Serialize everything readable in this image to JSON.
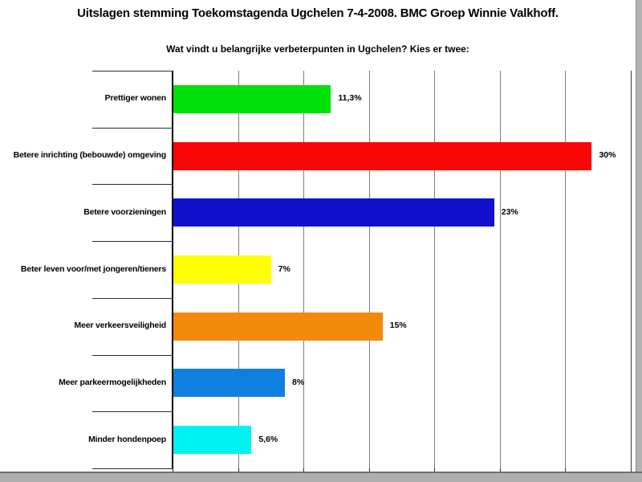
{
  "page_title": "Uitslagen stemming Toekomstagenda Ugchelen 7-4-2008. BMC Groep Winnie Valkhoff.",
  "chart_data": {
    "type": "bar",
    "orientation": "horizontal",
    "title": "Uitslagen stemming Toekomstagenda Ugchelen 7-4-2008. BMC Groep Winnie Valkhoff.",
    "subtitle": "Wat vindt u belangrijke verbeterpunten in Ugchelen? Kies er twee:",
    "categories": [
      "Prettiger wonen",
      "Betere inrichting (bebouwde) omgeving",
      "Betere voorzieningen",
      "Beter leven voor/met jongeren/tieners",
      "Meer verkeersveiligheid",
      "Meer parkeermogelijkheden",
      "Minder hondenpoep"
    ],
    "values": [
      11.3,
      30,
      23,
      7,
      15,
      8,
      5.6
    ],
    "value_labels": [
      "11,3%",
      "30%",
      "23%",
      "7%",
      "15%",
      "8%",
      "5,6%"
    ],
    "bar_colors": [
      "#00e20a",
      "#f90606",
      "#1111cc",
      "#ffff00",
      "#f28a0e",
      "#1080e0",
      "#00f2f2"
    ],
    "xlabel": "",
    "ylabel": "",
    "xlim": [
      0,
      32.85
    ],
    "grid": true,
    "gridline_count": 7,
    "legend": false,
    "data_label_position": "outside-end"
  },
  "colors": {
    "background": "#ffffff",
    "gridline": "#7f7f7f",
    "axis": "#000000",
    "bar_label_text": "#000000",
    "frame": "#b0b0b0"
  }
}
